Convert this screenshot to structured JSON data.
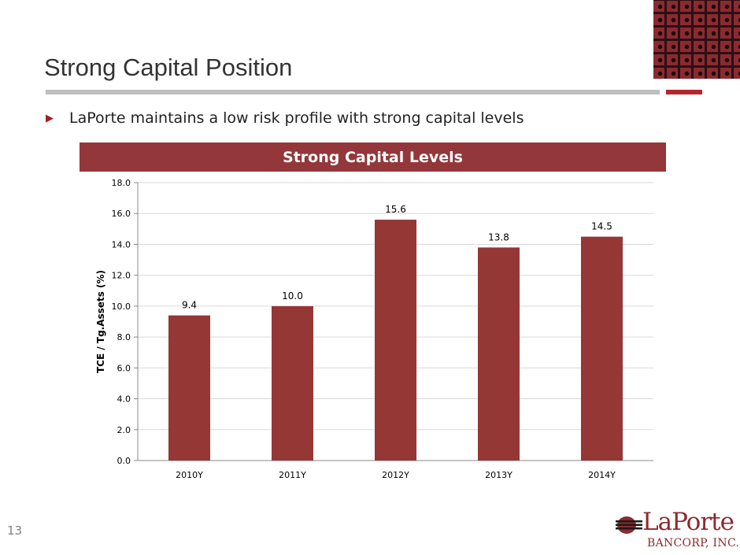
{
  "slide": {
    "title": "Strong Capital Position",
    "bullet": "LaPorte maintains a low risk profile with strong capital levels",
    "page_number": "13"
  },
  "logo": {
    "name": "LaPorte",
    "subtitle": "BANCORP, INC.",
    "icon": "laporte-emblem-icon"
  },
  "colors": {
    "accent": "#93373a",
    "bar": "#953735",
    "rule_gray": "#bfbfbf",
    "rule_red": "#b3262d"
  },
  "chart_data": {
    "type": "bar",
    "title": "Strong Capital Levels",
    "categories": [
      "2010Y",
      "2011Y",
      "2012Y",
      "2013Y",
      "2014Y"
    ],
    "values": [
      9.4,
      10.0,
      15.6,
      13.8,
      14.5
    ],
    "data_labels": [
      "9.4",
      "10.0",
      "15.6",
      "13.8",
      "14.5"
    ],
    "xlabel": "",
    "ylabel": "TCE / Tg.Assets (%)",
    "ylim": [
      0,
      18
    ],
    "yticks": [
      "0.0",
      "2.0",
      "4.0",
      "6.0",
      "8.0",
      "10.0",
      "12.0",
      "14.0",
      "16.0",
      "18.0"
    ],
    "grid": true,
    "legend": "none"
  }
}
